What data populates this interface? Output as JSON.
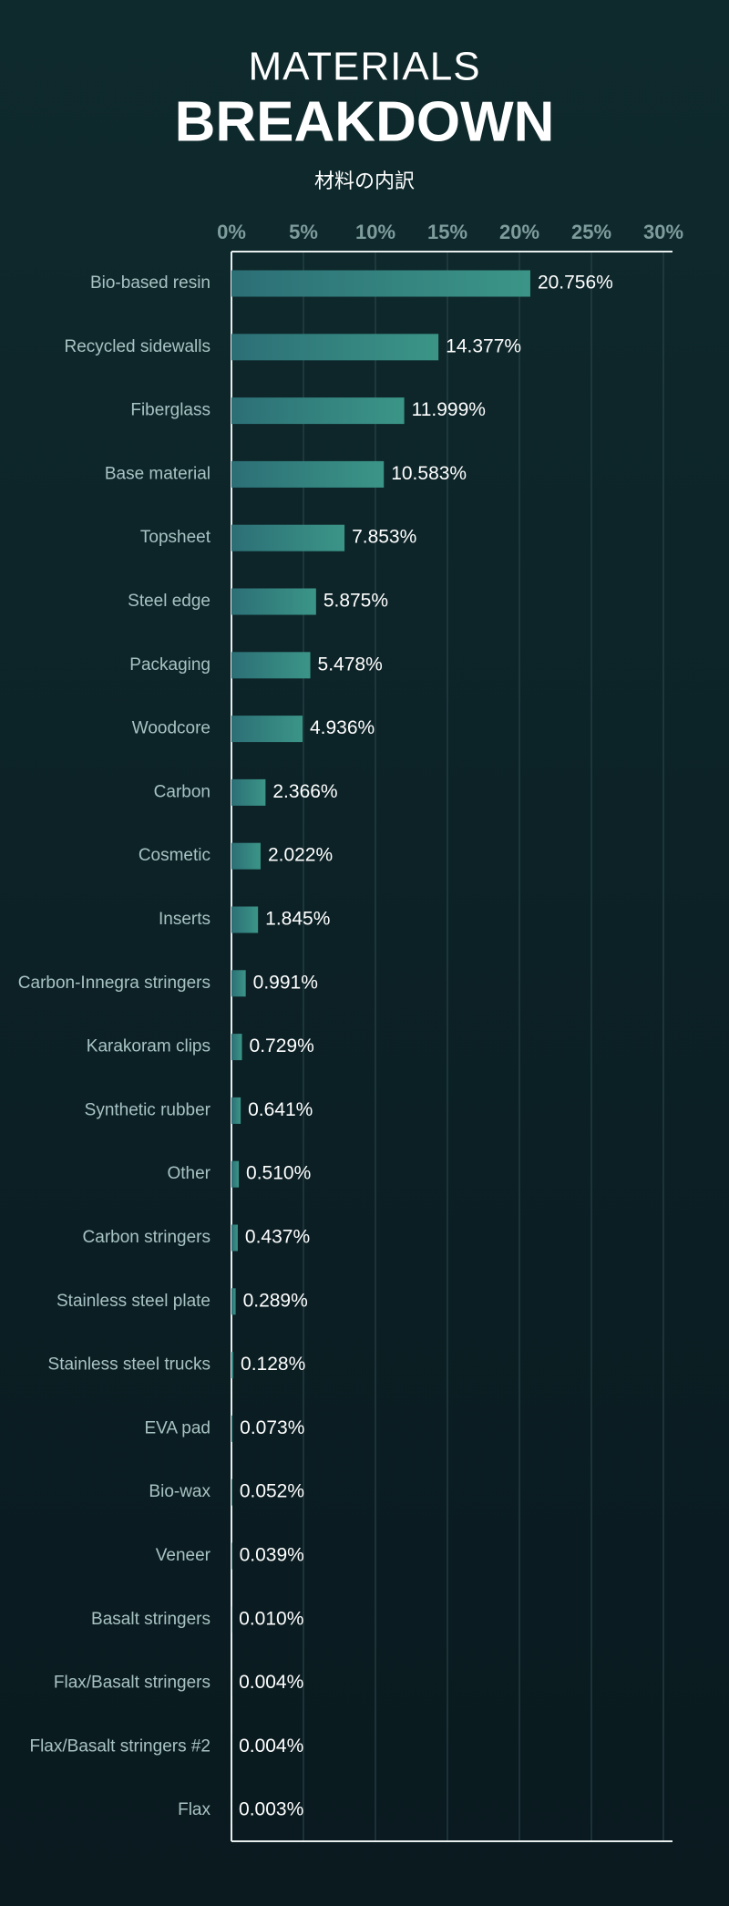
{
  "chart_data": {
    "type": "hbar",
    "title": "MATERIALS",
    "subtitle": "BREAKDOWN",
    "caption": "材料の内訳",
    "categories": [
      "Bio-based resin",
      "Recycled sidewalls",
      "Fiberglass",
      "Base material",
      "Topsheet",
      "Steel edge",
      "Packaging",
      "Woodcore",
      "Carbon",
      "Cosmetic",
      "Inserts",
      "Carbon-Innegra stringers",
      "Karakoram clips",
      "Synthetic rubber",
      "Other",
      "Carbon stringers",
      "Stainless steel plate",
      "Stainless steel trucks",
      "EVA pad",
      "Bio-wax",
      "Veneer",
      "Basalt stringers",
      "Flax/Basalt stringers",
      "Flax/Basalt stringers #2",
      "Flax"
    ],
    "values": [
      20.756,
      14.377,
      11.999,
      10.583,
      7.853,
      5.875,
      5.478,
      4.936,
      2.366,
      2.022,
      1.845,
      0.991,
      0.729,
      0.641,
      0.51,
      0.437,
      0.289,
      0.128,
      0.073,
      0.052,
      0.039,
      0.01,
      0.004,
      0.004,
      0.003
    ],
    "value_labels": [
      "20.756%",
      "14.377%",
      "11.999%",
      "10.583%",
      "7.853%",
      "5.875%",
      "5.478%",
      "4.936%",
      "2.366%",
      "2.022%",
      "1.845%",
      "0.991%",
      "0.729%",
      "0.641%",
      "0.510%",
      "0.437%",
      "0.289%",
      "0.128%",
      "0.073%",
      "0.052%",
      "0.039%",
      "0.010%",
      "0.004%",
      "0.004%",
      "0.003%"
    ],
    "color": "#2f7b7e",
    "xlim": [
      0,
      30
    ],
    "xticks": [
      {
        "value": 0,
        "label": "0%"
      },
      {
        "value": 5,
        "label": "5%"
      },
      {
        "value": 10,
        "label": "10%"
      },
      {
        "value": 15,
        "label": "15%"
      },
      {
        "value": 20,
        "label": "20%"
      },
      {
        "value": 25,
        "label": "25%"
      },
      {
        "value": 30,
        "label": "30%"
      }
    ],
    "grid": true
  }
}
